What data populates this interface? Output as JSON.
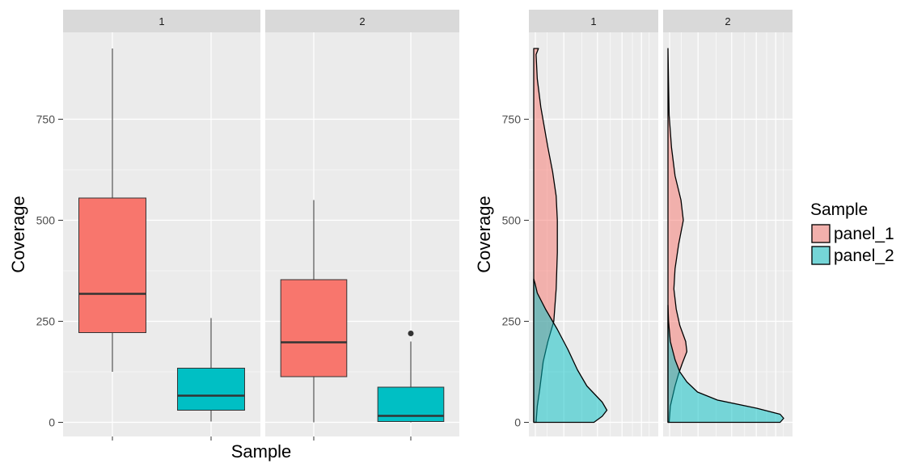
{
  "colors": {
    "panel_bg": "#EBEBEB",
    "strip_bg": "#D9D9D9",
    "grid": "#FFFFFF",
    "panel_1": "#F8766D",
    "panel_2": "#00BFC4",
    "outline": "#000000",
    "median": "#333333"
  },
  "chart_data": [
    {
      "type": "boxplot",
      "facets": [
        "1",
        "2"
      ],
      "xlabel": "Sample",
      "ylabel": "Coverage",
      "y_ticks": [
        0,
        250,
        500,
        750
      ],
      "y_tick_labels": [
        "0",
        "250",
        "500",
        "750"
      ],
      "ylim": [
        -35,
        965
      ],
      "series": [
        {
          "name": "panel_1",
          "facet": "1",
          "min": 125,
          "q1": 222,
          "median": 318,
          "q3": 555,
          "max": 925,
          "outliers": []
        },
        {
          "name": "panel_2",
          "facet": "1",
          "min": 2,
          "q1": 30,
          "median": 66,
          "q3": 134,
          "max": 258,
          "outliers": []
        },
        {
          "name": "panel_1",
          "facet": "2",
          "min": 0,
          "q1": 113,
          "median": 198,
          "q3": 353,
          "max": 550,
          "outliers": []
        },
        {
          "name": "panel_2",
          "facet": "2",
          "min": 0,
          "q1": 2,
          "median": 16,
          "q3": 87,
          "max": 200,
          "outliers": [
            220
          ]
        }
      ]
    },
    {
      "type": "area",
      "subtype": "density (horizontal)",
      "facets": [
        "1",
        "2"
      ],
      "xlabel": "",
      "ylabel": "Coverage",
      "y_ticks": [
        0,
        250,
        500,
        750
      ],
      "y_tick_labels": [
        "0",
        "250",
        "500",
        "750"
      ],
      "ylim": [
        -35,
        965
      ],
      "xlim": [
        0,
        1
      ],
      "legend": {
        "title": "Sample",
        "position": "right",
        "entries": [
          "panel_1",
          "panel_2"
        ]
      },
      "series": [
        {
          "name": "panel_1",
          "facet": "1",
          "points": [
            [
              0,
              0.02
            ],
            [
              40,
              0.03
            ],
            [
              80,
              0.05
            ],
            [
              150,
              0.08
            ],
            [
              200,
              0.12
            ],
            [
              250,
              0.17
            ],
            [
              330,
              0.19
            ],
            [
              420,
              0.2
            ],
            [
              500,
              0.2
            ],
            [
              560,
              0.19
            ],
            [
              620,
              0.16
            ],
            [
              680,
              0.12
            ],
            [
              730,
              0.09
            ],
            [
              780,
              0.06
            ],
            [
              850,
              0.03
            ],
            [
              910,
              0.02
            ],
            [
              925,
              0.04
            ],
            [
              925,
              0.0
            ]
          ]
        },
        {
          "name": "panel_2",
          "facet": "1",
          "points": [
            [
              0,
              0.51
            ],
            [
              15,
              0.58
            ],
            [
              30,
              0.62
            ],
            [
              50,
              0.58
            ],
            [
              90,
              0.45
            ],
            [
              130,
              0.37
            ],
            [
              180,
              0.29
            ],
            [
              230,
              0.2
            ],
            [
              280,
              0.1
            ],
            [
              320,
              0.03
            ],
            [
              345,
              0.01
            ],
            [
              355,
              0.0
            ]
          ]
        },
        {
          "name": "panel_1",
          "facet": "2",
          "points": [
            [
              0,
              0.01
            ],
            [
              40,
              0.02
            ],
            [
              90,
              0.06
            ],
            [
              120,
              0.09
            ],
            [
              145,
              0.12
            ],
            [
              175,
              0.16
            ],
            [
              200,
              0.15
            ],
            [
              240,
              0.1
            ],
            [
              280,
              0.07
            ],
            [
              330,
              0.05
            ],
            [
              380,
              0.06
            ],
            [
              440,
              0.09
            ],
            [
              500,
              0.13
            ],
            [
              550,
              0.11
            ],
            [
              610,
              0.06
            ],
            [
              680,
              0.03
            ],
            [
              760,
              0.01
            ],
            [
              840,
              0.005
            ],
            [
              925,
              0.0
            ]
          ]
        },
        {
          "name": "panel_2",
          "facet": "2",
          "points": [
            [
              0,
              0.95
            ],
            [
              10,
              0.98
            ],
            [
              20,
              0.95
            ],
            [
              35,
              0.75
            ],
            [
              55,
              0.42
            ],
            [
              75,
              0.25
            ],
            [
              100,
              0.16
            ],
            [
              125,
              0.1
            ],
            [
              155,
              0.06
            ],
            [
              200,
              0.02
            ],
            [
              250,
              0.005
            ],
            [
              290,
              0.0
            ]
          ]
        }
      ]
    }
  ]
}
